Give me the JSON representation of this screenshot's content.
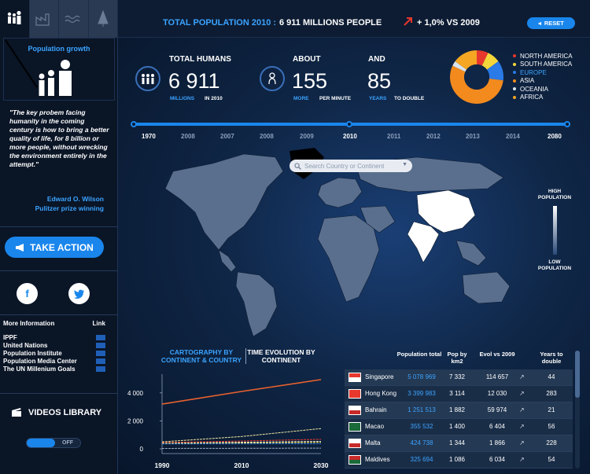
{
  "header": {
    "title": "TOTAL POPULATION 2010 :",
    "value": "6 911 MILLIONS PEOPLE",
    "change": "+ 1,0% VS 2009",
    "reset": "RESET"
  },
  "sidebar": {
    "panel_label": "Population growth",
    "quote": "\"The key probem facing humanity in the coming century is how to bring a better quality of life, for 8 billion or more people, without wrecking the environment entirely in the attempt.\"",
    "author_name": "Edward O. Wilson",
    "author_title": "Pulitzer prize winning",
    "take_action": "TAKE ACTION",
    "more_info_title": "More Information",
    "link_title": "Link",
    "links": [
      "IPPF",
      "United Nations",
      "Population Institute",
      "Population Media Center",
      "The UN Millenium Goals"
    ],
    "videos": "VIDEOS LIBRARY",
    "toggle_off": "OFF"
  },
  "stats": {
    "humans": {
      "label": "TOTAL HUMANS",
      "value": "6 911",
      "sub1": "MILLIONS",
      "sub2": "IN 2010"
    },
    "about": {
      "label": "ABOUT",
      "value": "155",
      "sub1": "MORE",
      "sub2": "PER MINUTE"
    },
    "and": {
      "label": "AND",
      "value": "85",
      "sub1": "YEARS",
      "sub2": "TO DOUBLE"
    }
  },
  "legend": [
    {
      "name": "NORTH AMERICA",
      "color": "#e8382e"
    },
    {
      "name": "SOUTH AMERICA",
      "color": "#f5d63a"
    },
    {
      "name": "EUROPE",
      "color": "#2a7ae8"
    },
    {
      "name": "ASIA",
      "color": "#f28a1e"
    },
    {
      "name": "OCEANIA",
      "color": "#d9e4f0"
    },
    {
      "name": "AFRICA",
      "color": "#f5a623"
    }
  ],
  "timeline": {
    "years": [
      "1970",
      "2008",
      "2007",
      "2008",
      "2009",
      "2010",
      "2011",
      "2012",
      "2013",
      "2014",
      "2080"
    ],
    "selected": "2010"
  },
  "map": {
    "search_placeholder": "Search Country or Continent",
    "high": "HIGH POPULATION",
    "low": "LOW POPULATION"
  },
  "chart_tabs": {
    "a": "CARTOGRAPHY BY CONTINENT & COUNTRY",
    "b": "TIME EVOLUTION BY CONTINENT"
  },
  "chart_data": {
    "type": "line",
    "x": [
      1990,
      2010,
      2030
    ],
    "x_ticks": [
      "1990",
      "2010",
      "2030"
    ],
    "y_ticks": [
      "4 000",
      "2 000",
      "0"
    ],
    "ylim": [
      0,
      5000
    ],
    "series": [
      {
        "color": "#e8612e",
        "values": [
          3200,
          4100,
          4950
        ]
      },
      {
        "color": "#f0e6a0",
        "values": [
          500,
          880,
          1450
        ]
      },
      {
        "color": "#e8382e",
        "values": [
          450,
          560,
          680
        ]
      },
      {
        "color": "#ffffff",
        "values": [
          400,
          470,
          520
        ]
      },
      {
        "color": "#f5d63a",
        "values": [
          380,
          420,
          470
        ]
      },
      {
        "color": "#2a7ae8",
        "values": [
          350,
          360,
          370
        ]
      },
      {
        "color": "#9aa8bc",
        "values": [
          30,
          40,
          50
        ]
      }
    ]
  },
  "table": {
    "headers": [
      "Population total",
      "Pop by km2",
      "Evol vs 2009",
      "Years to double"
    ],
    "rows": [
      {
        "country": "Singapore",
        "population": "5 078 969",
        "density": "7 332",
        "evol": "114 657",
        "double": "44"
      },
      {
        "country": "Hong Kong",
        "population": "3 399 983",
        "density": "3 114",
        "evol": "12 030",
        "double": "283"
      },
      {
        "country": "Bahrain",
        "population": "1 251 513",
        "density": "1 882",
        "evol": "59 974",
        "double": "21"
      },
      {
        "country": "Macao",
        "population": "355 532",
        "density": "1 400",
        "evol": "6 404",
        "double": "56"
      },
      {
        "country": "Malta",
        "population": "424 738",
        "density": "1 344",
        "evol": "1 866",
        "double": "228"
      },
      {
        "country": "Maldives",
        "population": "325 694",
        "density": "1 086",
        "evol": "6 034",
        "double": "54"
      }
    ]
  }
}
